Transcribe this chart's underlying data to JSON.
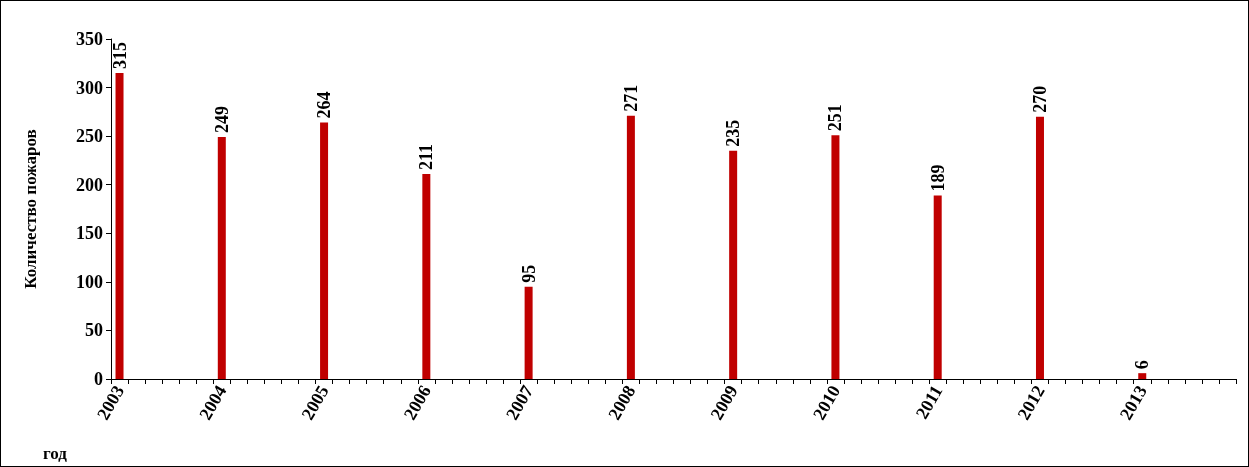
{
  "chart_data": {
    "type": "bar",
    "xlabel": "год",
    "ylabel": "Количество пожаров",
    "categories": [
      "2003",
      null,
      null,
      null,
      null,
      null,
      "2004",
      null,
      null,
      null,
      null,
      null,
      "2005",
      null,
      null,
      null,
      null,
      null,
      "2006",
      null,
      null,
      null,
      null,
      null,
      "2007",
      null,
      null,
      null,
      null,
      null,
      "2008",
      null,
      null,
      null,
      null,
      null,
      "2009",
      null,
      null,
      null,
      null,
      null,
      "2010",
      null,
      null,
      null,
      null,
      null,
      "2011",
      null,
      null,
      null,
      null,
      null,
      "2012",
      null,
      null,
      null,
      null,
      null,
      "2013",
      null,
      null,
      null,
      null,
      null
    ],
    "values": [
      315,
      null,
      null,
      null,
      null,
      null,
      249,
      null,
      null,
      null,
      null,
      null,
      264,
      null,
      null,
      null,
      null,
      null,
      211,
      null,
      null,
      null,
      null,
      null,
      95,
      null,
      null,
      null,
      null,
      null,
      271,
      null,
      null,
      null,
      null,
      null,
      235,
      null,
      null,
      null,
      null,
      null,
      251,
      null,
      null,
      null,
      null,
      null,
      189,
      null,
      null,
      null,
      null,
      null,
      270,
      null,
      null,
      null,
      null,
      null,
      6,
      null,
      null,
      null,
      null,
      null
    ],
    "color": "#c00000",
    "ylim": [
      0,
      350
    ],
    "yticks": [
      0,
      50,
      100,
      150,
      200,
      250,
      300,
      350
    ],
    "data_labels": true,
    "grid": false
  }
}
